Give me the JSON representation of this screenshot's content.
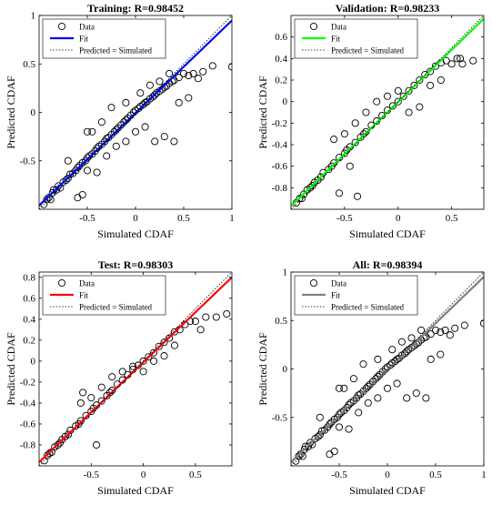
{
  "figure": {
    "background": "#ffffff"
  },
  "chart_data": [
    {
      "type": "scatter",
      "title": "Training: R=0.98452",
      "xlabel": "Simulated CDAF",
      "ylabel": "Predicted CDAF",
      "xlim": [
        -1,
        1
      ],
      "ylim": [
        -1,
        1
      ],
      "xticks": [
        -0.5,
        0,
        0.5,
        1
      ],
      "xtick_labels": [
        "-0.5",
        "0",
        "0.5",
        "1"
      ],
      "yticks": [
        -0.5,
        0,
        0.5,
        1
      ],
      "ytick_labels": [
        "-0.5",
        "0",
        "0.5",
        "1"
      ],
      "grid": false,
      "legend": {
        "placement": "top-left",
        "entries": [
          {
            "label": "Data",
            "marker": "open-circle",
            "color": "#000000"
          },
          {
            "label": "Fit",
            "line": "solid",
            "color": "#0000ff"
          },
          {
            "label": "Predicted = Simulated",
            "line": "dotted",
            "color": "#000000"
          }
        ]
      },
      "series": [
        {
          "name": "Fit",
          "type": "line",
          "color": "#0000ff",
          "x": [
            -1,
            1
          ],
          "y": [
            -0.962,
            0.948
          ]
        },
        {
          "name": "Predicted = Simulated",
          "type": "line",
          "style": "dotted",
          "color": "#000000",
          "x": [
            -1,
            1
          ],
          "y": [
            -1,
            1
          ]
        },
        {
          "name": "Data",
          "type": "scatter",
          "color": "#000000",
          "x": [
            -0.95,
            -0.92,
            -0.9,
            -0.88,
            -0.86,
            -0.85,
            -0.82,
            -0.8,
            -0.78,
            -0.75,
            -0.72,
            -0.7,
            -0.68,
            -0.65,
            -0.62,
            -0.6,
            -0.58,
            -0.55,
            -0.52,
            -0.5,
            -0.48,
            -0.45,
            -0.42,
            -0.4,
            -0.38,
            -0.35,
            -0.32,
            -0.3,
            -0.28,
            -0.25,
            -0.22,
            -0.2,
            -0.18,
            -0.15,
            -0.12,
            -0.1,
            -0.08,
            -0.05,
            -0.02,
            0,
            0.03,
            0.05,
            0.08,
            0.1,
            0.12,
            0.15,
            0.18,
            0.2,
            0.22,
            0.25,
            0.28,
            0.3,
            0.32,
            0.35,
            0.38,
            0.4,
            0.45,
            0.5,
            0.55,
            0.6,
            0.65,
            0.7,
            0.8,
            1.0,
            -0.6,
            -0.55,
            -0.5,
            -0.45,
            -0.4,
            -0.3,
            -0.2,
            -0.1,
            0,
            0.1,
            0.2,
            0.3,
            0.4,
            -0.7,
            -0.5,
            -0.35,
            -0.25,
            -0.1,
            0.05,
            0.15,
            0.25,
            0.45,
            0.55,
            0.35
          ],
          "y": [
            -0.95,
            -0.9,
            -0.88,
            -0.9,
            -0.83,
            -0.8,
            -0.8,
            -0.76,
            -0.78,
            -0.72,
            -0.7,
            -0.68,
            -0.64,
            -0.63,
            -0.6,
            -0.57,
            -0.55,
            -0.52,
            -0.5,
            -0.47,
            -0.45,
            -0.43,
            -0.4,
            -0.37,
            -0.35,
            -0.33,
            -0.3,
            -0.27,
            -0.26,
            -0.23,
            -0.2,
            -0.18,
            -0.16,
            -0.13,
            -0.1,
            -0.08,
            -0.06,
            -0.03,
            0,
            0.02,
            0.04,
            0.06,
            0.08,
            0.1,
            0.11,
            0.14,
            0.16,
            0.18,
            0.2,
            0.22,
            0.24,
            0.26,
            0.27,
            0.3,
            0.32,
            0.33,
            0.36,
            0.4,
            0.38,
            0.4,
            0.35,
            0.42,
            0.48,
            0.47,
            -0.88,
            -0.85,
            -0.6,
            -0.2,
            -0.62,
            -0.45,
            -0.35,
            -0.3,
            -0.2,
            -0.15,
            -0.3,
            -0.25,
            -0.3,
            -0.5,
            -0.2,
            -0.1,
            0.05,
            0.1,
            0.2,
            0.28,
            0.32,
            0.1,
            0.15,
            0.4
          ]
        }
      ]
    },
    {
      "type": "scatter",
      "title": "Validation: R=0.98233",
      "xlabel": "Simulated CDAF",
      "ylabel": "Predicted CDAF",
      "xlim": [
        -1,
        0.8
      ],
      "ylim": [
        -1,
        0.8
      ],
      "xticks": [
        -0.5,
        0,
        0.5
      ],
      "xtick_labels": [
        "-0.5",
        "0",
        "0.5"
      ],
      "yticks": [
        -0.8,
        -0.6,
        -0.4,
        -0.2,
        0,
        0.2,
        0.4,
        0.6
      ],
      "ytick_labels": [
        "-0.8",
        "-0.6",
        "-0.4",
        "-0.2",
        "0",
        "0.2",
        "0.4",
        "0.6"
      ],
      "grid": false,
      "legend": {
        "placement": "top-left",
        "entries": [
          {
            "label": "Data",
            "marker": "open-circle",
            "color": "#000000"
          },
          {
            "label": "Fit",
            "line": "solid",
            "color": "#00ff00"
          },
          {
            "label": "Predicted = Simulated",
            "line": "dotted",
            "color": "#000000"
          }
        ]
      },
      "series": [
        {
          "name": "Fit",
          "type": "line",
          "color": "#00ff00",
          "x": [
            -1,
            0.8
          ],
          "y": [
            -0.97,
            0.77
          ]
        },
        {
          "name": "Predicted = Simulated",
          "type": "line",
          "style": "dotted",
          "color": "#000000",
          "x": [
            -1,
            0.8
          ],
          "y": [
            -1,
            0.8
          ]
        },
        {
          "name": "Data",
          "type": "scatter",
          "color": "#000000",
          "x": [
            -0.95,
            -0.92,
            -0.9,
            -0.88,
            -0.85,
            -0.82,
            -0.8,
            -0.78,
            -0.75,
            -0.72,
            -0.7,
            -0.65,
            -0.62,
            -0.6,
            -0.55,
            -0.5,
            -0.48,
            -0.45,
            -0.4,
            -0.35,
            -0.32,
            -0.3,
            -0.25,
            -0.2,
            -0.15,
            -0.1,
            -0.05,
            0,
            0.05,
            0.1,
            0.15,
            0.2,
            0.25,
            0.3,
            0.35,
            0.4,
            0.45,
            0.5,
            0.55,
            0.6,
            0.7,
            -0.6,
            -0.5,
            -0.4,
            -0.3,
            -0.2,
            -0.1,
            0,
            0.1,
            0.2,
            0.3,
            0.4,
            -0.55,
            -0.45,
            -0.38,
            0.58
          ],
          "y": [
            -0.94,
            -0.9,
            -0.9,
            -0.86,
            -0.82,
            -0.8,
            -0.78,
            -0.75,
            -0.73,
            -0.7,
            -0.66,
            -0.63,
            -0.6,
            -0.57,
            -0.52,
            -0.48,
            -0.45,
            -0.42,
            -0.38,
            -0.33,
            -0.3,
            -0.28,
            -0.22,
            -0.18,
            -0.13,
            -0.08,
            -0.04,
            0,
            0.05,
            0.1,
            0.15,
            0.2,
            0.25,
            0.28,
            0.33,
            0.36,
            0.38,
            0.35,
            0.4,
            0.35,
            0.38,
            -0.35,
            -0.3,
            -0.2,
            -0.1,
            0,
            0.05,
            0.1,
            -0.1,
            -0.05,
            0.15,
            0.2,
            -0.85,
            -0.6,
            -0.88,
            0.4
          ]
        }
      ]
    },
    {
      "type": "scatter",
      "title": "Test: R=0.98303",
      "xlabel": "Simulated CDAF",
      "ylabel": "Predicted CDAF",
      "xlim": [
        -1,
        0.85
      ],
      "ylim": [
        -1,
        0.85
      ],
      "xticks": [
        -0.5,
        0,
        0.5
      ],
      "xtick_labels": [
        "-0.5",
        "0",
        "0.5"
      ],
      "yticks": [
        -0.8,
        -0.6,
        -0.4,
        -0.2,
        0,
        0.2,
        0.4,
        0.6,
        0.8
      ],
      "ytick_labels": [
        "-0.8",
        "-0.6",
        "-0.4",
        "-0.2",
        "0",
        "0.2",
        "0.4",
        "0.6",
        "0.8"
      ],
      "grid": false,
      "legend": {
        "placement": "top-left",
        "entries": [
          {
            "label": "Data",
            "marker": "open-circle",
            "color": "#000000"
          },
          {
            "label": "Fit",
            "line": "solid",
            "color": "#ff0000"
          },
          {
            "label": "Predicted = Simulated",
            "line": "dotted",
            "color": "#000000"
          }
        ]
      },
      "series": [
        {
          "name": "Fit",
          "type": "line",
          "color": "#ff0000",
          "x": [
            -1,
            0.85
          ],
          "y": [
            -0.965,
            0.8
          ]
        },
        {
          "name": "Predicted = Simulated",
          "type": "line",
          "style": "dotted",
          "color": "#000000",
          "x": [
            -1,
            0.85
          ],
          "y": [
            -1,
            0.85
          ]
        },
        {
          "name": "Data",
          "type": "scatter",
          "color": "#000000",
          "x": [
            -0.95,
            -0.92,
            -0.9,
            -0.88,
            -0.85,
            -0.82,
            -0.8,
            -0.78,
            -0.75,
            -0.72,
            -0.7,
            -0.65,
            -0.62,
            -0.6,
            -0.55,
            -0.5,
            -0.48,
            -0.45,
            -0.4,
            -0.35,
            -0.32,
            -0.3,
            -0.25,
            -0.2,
            -0.15,
            -0.1,
            -0.05,
            0,
            0.05,
            0.1,
            0.15,
            0.2,
            0.25,
            0.3,
            0.35,
            0.4,
            0.45,
            0.5,
            0.6,
            0.7,
            0.8,
            -0.6,
            -0.5,
            -0.4,
            -0.3,
            -0.2,
            -0.1,
            0,
            0.1,
            0.2,
            -0.58,
            -0.45,
            0.3,
            0.55
          ],
          "y": [
            -0.95,
            -0.9,
            -0.88,
            -0.87,
            -0.82,
            -0.8,
            -0.78,
            -0.75,
            -0.72,
            -0.7,
            -0.66,
            -0.62,
            -0.6,
            -0.57,
            -0.52,
            -0.48,
            -0.45,
            -0.42,
            -0.38,
            -0.33,
            -0.3,
            -0.28,
            -0.22,
            -0.18,
            -0.13,
            -0.08,
            -0.04,
            0,
            0.04,
            0.08,
            0.14,
            0.18,
            0.22,
            0.28,
            0.3,
            0.35,
            0.38,
            0.38,
            0.42,
            0.42,
            0.45,
            -0.4,
            -0.35,
            -0.25,
            -0.15,
            -0.1,
            -0.05,
            -0.1,
            0,
            0.05,
            -0.3,
            -0.8,
            0.15,
            0.3
          ]
        }
      ]
    },
    {
      "type": "scatter",
      "title": "All: R=0.98394",
      "xlabel": "Simulated CDAF",
      "ylabel": "Predicted CDAF",
      "xlim": [
        -1,
        1
      ],
      "ylim": [
        -1,
        1
      ],
      "xticks": [
        -0.5,
        0,
        0.5,
        1
      ],
      "xtick_labels": [
        "-0.5",
        "0",
        "0.5",
        "1"
      ],
      "yticks": [
        -0.5,
        0,
        0.5,
        1
      ],
      "ytick_labels": [
        "-0.5",
        "0",
        "0.5",
        "1"
      ],
      "grid": false,
      "legend": {
        "placement": "top-left",
        "entries": [
          {
            "label": "Data",
            "marker": "open-circle",
            "color": "#000000"
          },
          {
            "label": "Fit",
            "line": "solid",
            "color": "#808080"
          },
          {
            "label": "Predicted = Simulated",
            "line": "dotted",
            "color": "#000000"
          }
        ]
      },
      "series": [
        {
          "name": "Fit",
          "type": "line",
          "color": "#808080",
          "x": [
            -1,
            1
          ],
          "y": [
            -0.962,
            0.95
          ]
        },
        {
          "name": "Predicted = Simulated",
          "type": "line",
          "style": "dotted",
          "color": "#000000",
          "x": [
            -1,
            1
          ],
          "y": [
            -1,
            1
          ]
        },
        {
          "name": "Data",
          "type": "scatter",
          "color": "#000000",
          "x": [
            -0.95,
            -0.92,
            -0.9,
            -0.88,
            -0.86,
            -0.85,
            -0.82,
            -0.8,
            -0.78,
            -0.75,
            -0.72,
            -0.7,
            -0.68,
            -0.65,
            -0.62,
            -0.6,
            -0.58,
            -0.55,
            -0.52,
            -0.5,
            -0.48,
            -0.45,
            -0.42,
            -0.4,
            -0.38,
            -0.35,
            -0.32,
            -0.3,
            -0.28,
            -0.25,
            -0.22,
            -0.2,
            -0.18,
            -0.15,
            -0.12,
            -0.1,
            -0.08,
            -0.05,
            -0.02,
            0,
            0.03,
            0.05,
            0.08,
            0.1,
            0.12,
            0.15,
            0.18,
            0.2,
            0.22,
            0.25,
            0.28,
            0.3,
            0.32,
            0.35,
            0.38,
            0.4,
            0.45,
            0.5,
            0.55,
            0.6,
            0.7,
            0.8,
            1.0,
            -0.6,
            -0.55,
            -0.5,
            -0.45,
            -0.4,
            -0.3,
            -0.2,
            -0.1,
            0,
            0.1,
            0.2,
            0.3,
            0.4,
            -0.7,
            -0.5,
            -0.35,
            -0.25,
            -0.1,
            0.05,
            0.15,
            0.25,
            0.45,
            0.55,
            0.35,
            0.65
          ],
          "y": [
            -0.95,
            -0.9,
            -0.88,
            -0.9,
            -0.83,
            -0.8,
            -0.8,
            -0.76,
            -0.78,
            -0.72,
            -0.7,
            -0.68,
            -0.64,
            -0.63,
            -0.6,
            -0.57,
            -0.55,
            -0.52,
            -0.5,
            -0.47,
            -0.45,
            -0.43,
            -0.4,
            -0.37,
            -0.35,
            -0.33,
            -0.3,
            -0.27,
            -0.26,
            -0.23,
            -0.2,
            -0.18,
            -0.16,
            -0.13,
            -0.1,
            -0.08,
            -0.06,
            -0.03,
            0,
            0.02,
            0.04,
            0.06,
            0.08,
            0.1,
            0.11,
            0.14,
            0.16,
            0.18,
            0.2,
            0.22,
            0.24,
            0.26,
            0.27,
            0.3,
            0.32,
            0.33,
            0.36,
            0.4,
            0.38,
            0.4,
            0.42,
            0.45,
            0.47,
            -0.88,
            -0.85,
            -0.6,
            -0.2,
            -0.62,
            -0.45,
            -0.35,
            -0.3,
            -0.2,
            -0.15,
            -0.3,
            -0.25,
            -0.3,
            -0.5,
            -0.2,
            -0.1,
            0.05,
            0.1,
            0.2,
            0.28,
            0.32,
            0.1,
            0.15,
            0.4,
            0.35
          ]
        }
      ]
    }
  ]
}
